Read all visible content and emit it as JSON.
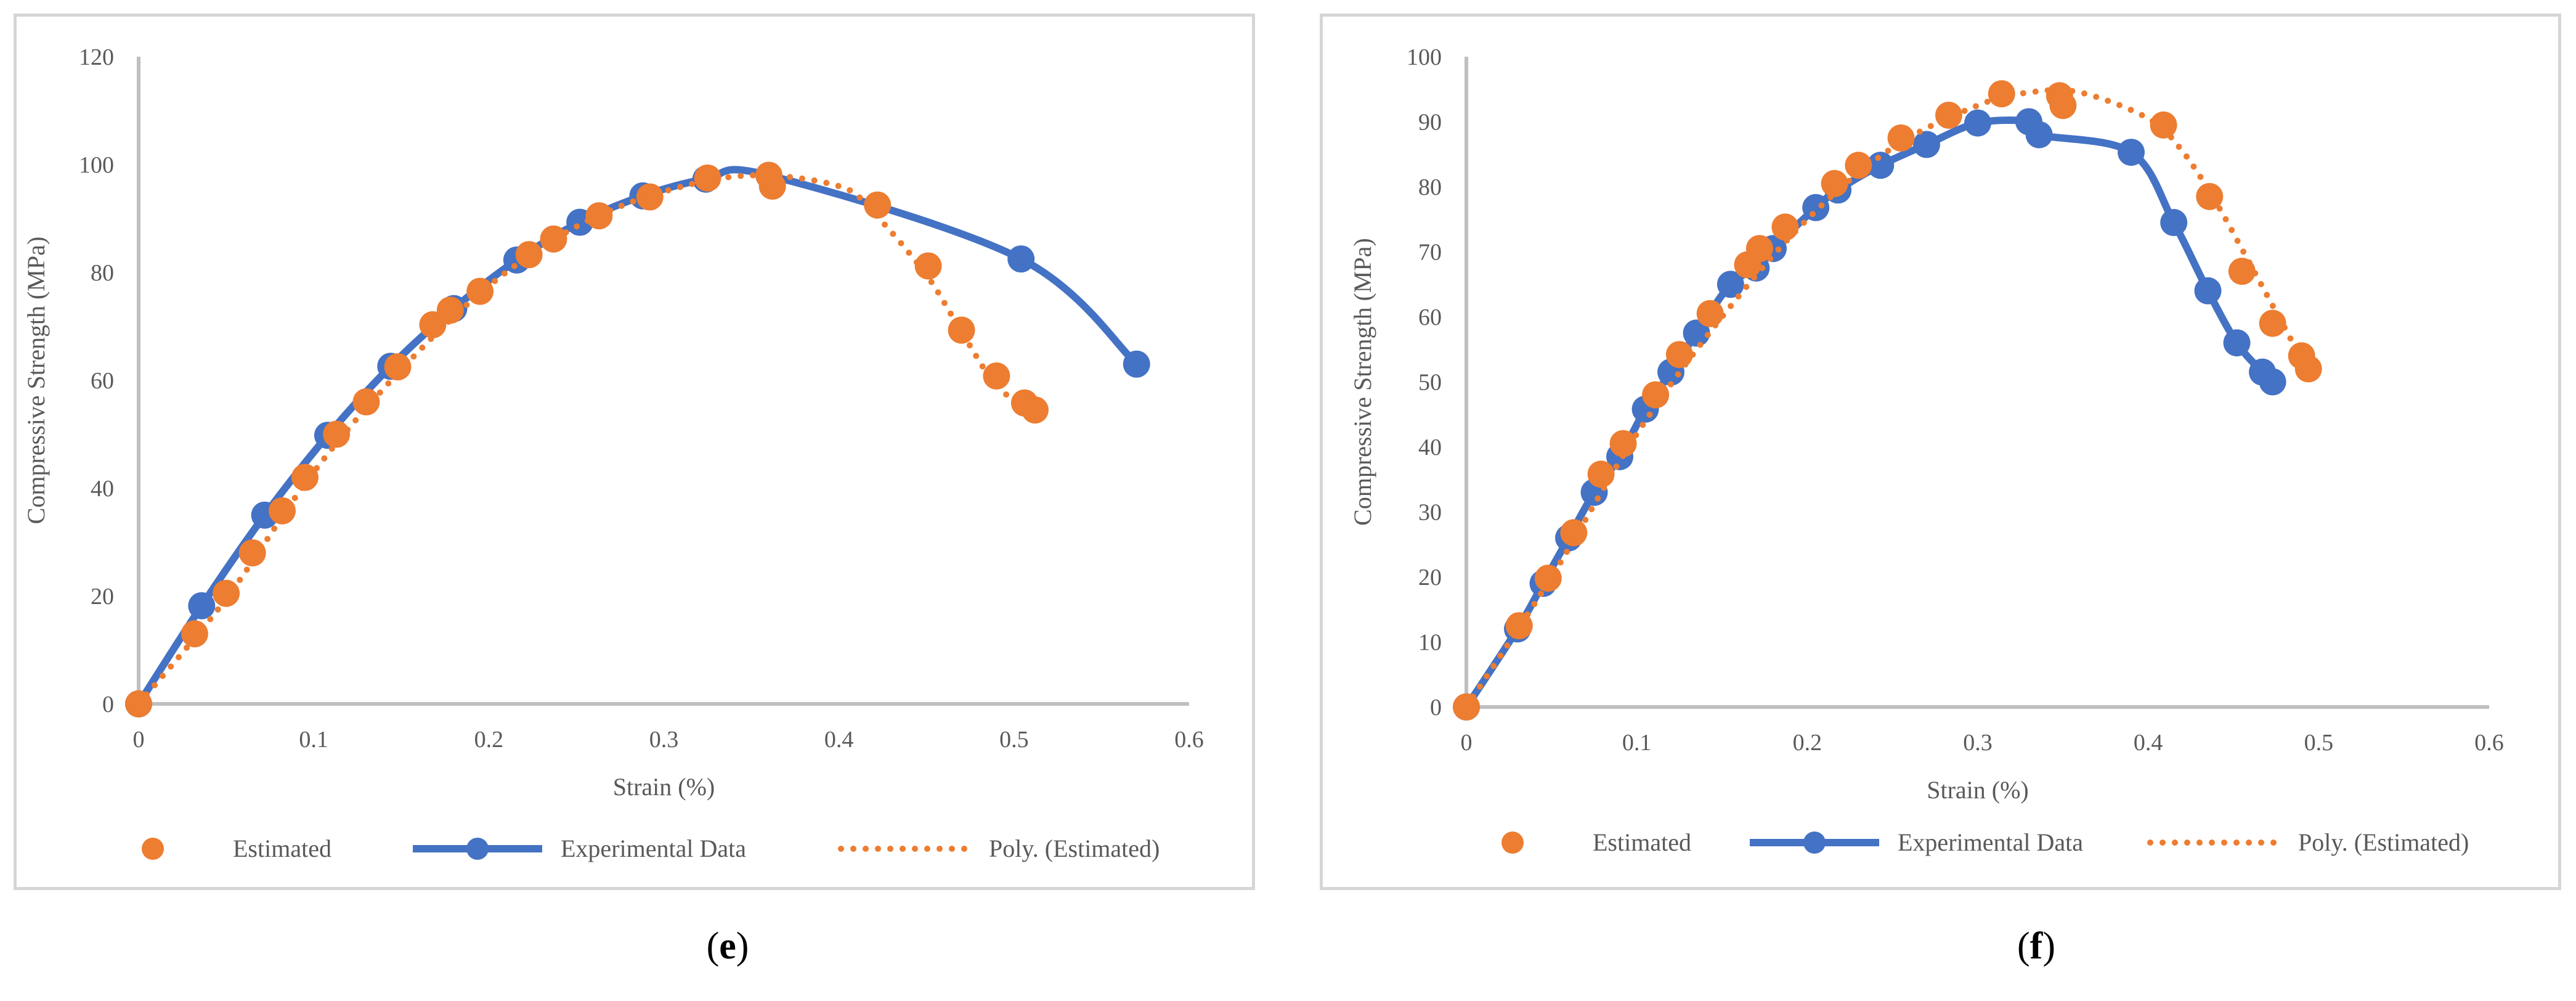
{
  "colors": {
    "estimated": "#ED7D31",
    "experimental": "#4472C4",
    "axis": "#BFBFBF",
    "text": "#595959"
  },
  "chart_data": [
    {
      "panel": "e",
      "type": "scatter",
      "xlabel": "Strain (%)",
      "ylabel": "Compressive Strength (MPa)",
      "xlim": [
        0,
        0.6
      ],
      "ylim": [
        0,
        120
      ],
      "x_ticks": [
        "0",
        "0.1",
        "0.2",
        "0.3",
        "0.4",
        "0.5",
        "0.6"
      ],
      "y_ticks": [
        "0",
        "20",
        "40",
        "60",
        "80",
        "100",
        "120"
      ],
      "legend": [
        "Estimated",
        "Experimental Data",
        "Poly. (Estimated)"
      ],
      "series": [
        {
          "name": "Experimental Data",
          "style": "line-markers",
          "x": [
            0,
            0.036,
            0.072,
            0.108,
            0.144,
            0.18,
            0.216,
            0.252,
            0.288,
            0.324,
            0.36,
            0.504,
            0.57
          ],
          "y": [
            0,
            18.2,
            35.0,
            49.8,
            62.6,
            73.3,
            82.3,
            89.3,
            94.2,
            97.3,
            98.0,
            82.5,
            63.0
          ]
        },
        {
          "name": "Estimated",
          "style": "markers",
          "x": [
            0,
            0.032,
            0.05,
            0.065,
            0.082,
            0.095,
            0.113,
            0.13,
            0.148,
            0.168,
            0.178,
            0.195,
            0.223,
            0.237,
            0.263,
            0.292,
            0.325,
            0.36,
            0.362,
            0.422,
            0.451,
            0.47,
            0.49,
            0.506,
            0.512
          ],
          "y": [
            0,
            13.0,
            20.5,
            28.0,
            35.8,
            42.0,
            50.0,
            56.0,
            62.5,
            70.3,
            73.0,
            76.5,
            83.3,
            86.2,
            90.5,
            94.0,
            97.5,
            98.0,
            96.0,
            92.5,
            81.2,
            69.3,
            60.8,
            55.8,
            54.5
          ]
        },
        {
          "name": "Poly. (Estimated)",
          "style": "dotted",
          "x": [
            0,
            0.05,
            0.1,
            0.15,
            0.2,
            0.25,
            0.3,
            0.35,
            0.4,
            0.42,
            0.45,
            0.47,
            0.49,
            0.51
          ],
          "y": [
            0,
            19.5,
            43.0,
            62.0,
            77.5,
            88.5,
            95.0,
            98.0,
            96.0,
            91.0,
            79.5,
            69.0,
            59.0,
            54.5
          ]
        }
      ]
    },
    {
      "panel": "f",
      "type": "scatter",
      "xlabel": "Strain (%)",
      "ylabel": "Compressive Strength (MPa)",
      "xlim": [
        0,
        0.6
      ],
      "ylim": [
        0,
        100
      ],
      "x_ticks": [
        "0",
        "0.1",
        "0.2",
        "0.3",
        "0.4",
        "0.5",
        "0.6"
      ],
      "y_ticks": [
        "0",
        "10",
        "20",
        "30",
        "40",
        "50",
        "60",
        "70",
        "80",
        "90",
        "100"
      ],
      "legend": [
        "Estimated",
        "Experimental Data",
        "Poly. (Estimated)"
      ],
      "series": [
        {
          "name": "Experimental Data",
          "style": "line-markers",
          "x": [
            0,
            0.03,
            0.045,
            0.06,
            0.075,
            0.09,
            0.105,
            0.12,
            0.135,
            0.155,
            0.17,
            0.18,
            0.205,
            0.218,
            0.243,
            0.27,
            0.3,
            0.33,
            0.336,
            0.39,
            0.415,
            0.435,
            0.452,
            0.467,
            0.473
          ],
          "y": [
            0,
            12.0,
            19.0,
            26.0,
            33.0,
            38.5,
            45.8,
            51.5,
            57.5,
            65.0,
            67.5,
            70.5,
            76.8,
            79.5,
            83.3,
            86.5,
            89.8,
            90.0,
            88.0,
            85.3,
            74.5,
            64.0,
            56.0,
            51.5,
            50.0
          ]
        },
        {
          "name": "Estimated",
          "style": "markers",
          "x": [
            0,
            0.031,
            0.048,
            0.063,
            0.079,
            0.092,
            0.111,
            0.125,
            0.143,
            0.165,
            0.172,
            0.187,
            0.216,
            0.23,
            0.255,
            0.283,
            0.314,
            0.348,
            0.35,
            0.409,
            0.436,
            0.455,
            0.473,
            0.49,
            0.494
          ],
          "y": [
            0,
            12.5,
            19.8,
            26.8,
            35.8,
            40.5,
            48.0,
            54.2,
            60.5,
            68.0,
            70.5,
            73.8,
            80.5,
            83.3,
            87.5,
            91.0,
            94.3,
            94.0,
            92.5,
            89.5,
            78.5,
            67.0,
            59.0,
            54.0,
            52.0
          ]
        },
        {
          "name": "Poly. (Estimated)",
          "style": "dotted",
          "x": [
            0,
            0.05,
            0.1,
            0.15,
            0.2,
            0.25,
            0.3,
            0.33,
            0.36,
            0.4,
            0.42,
            0.44,
            0.46,
            0.49
          ],
          "y": [
            0,
            20.0,
            42.0,
            60.0,
            75.0,
            86.0,
            92.5,
            94.5,
            94.5,
            90.5,
            85.5,
            77.5,
            68.0,
            53.5
          ]
        }
      ]
    }
  ],
  "captions": [
    {
      "letter": "e",
      "open": "(",
      "close": ")"
    },
    {
      "letter": "f",
      "open": "(",
      "close": ")"
    }
  ]
}
